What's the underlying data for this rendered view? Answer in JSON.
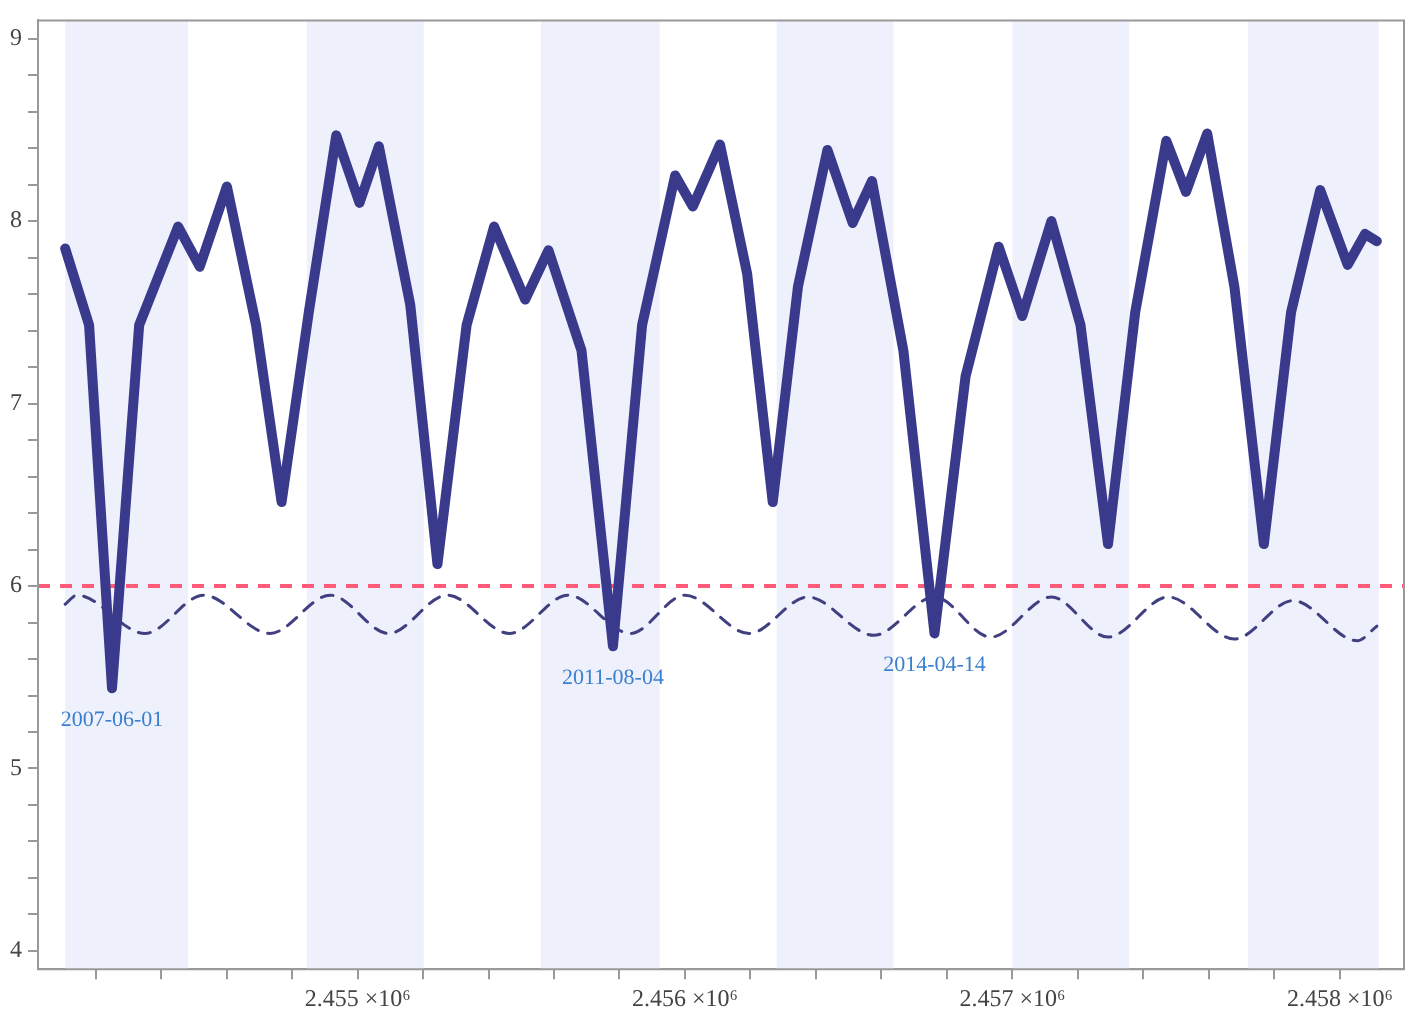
{
  "chart_data": {
    "type": "line",
    "xlim": [
      2454024,
      2458196
    ],
    "ylim": [
      3.9,
      9.1
    ],
    "xticks": [
      {
        "value": 2454200,
        "label": null
      },
      {
        "value": 2454400,
        "label": null
      },
      {
        "value": 2454600,
        "label": null
      },
      {
        "value": 2454800,
        "label": null
      },
      {
        "value": 2455000,
        "label": "2.455 ×10⁶"
      },
      {
        "value": 2455200,
        "label": null
      },
      {
        "value": 2455400,
        "label": null
      },
      {
        "value": 2455600,
        "label": null
      },
      {
        "value": 2455800,
        "label": null
      },
      {
        "value": 2456000,
        "label": "2.456 ×10⁶"
      },
      {
        "value": 2456200,
        "label": null
      },
      {
        "value": 2456400,
        "label": null
      },
      {
        "value": 2456600,
        "label": null
      },
      {
        "value": 2456800,
        "label": null
      },
      {
        "value": 2457000,
        "label": "2.457 ×10⁶"
      },
      {
        "value": 2457200,
        "label": null
      },
      {
        "value": 2457400,
        "label": null
      },
      {
        "value": 2457600,
        "label": null
      },
      {
        "value": 2457800,
        "label": null
      },
      {
        "value": 2458000,
        "label": "2.458 ×10⁶"
      }
    ],
    "yticks": [
      4,
      {
        "value": 4.2,
        "label": null
      },
      {
        "value": 4.4,
        "label": null
      },
      {
        "value": 4.6,
        "label": null
      },
      {
        "value": 4.8,
        "label": null
      },
      5,
      {
        "value": 5.2,
        "label": null
      },
      {
        "value": 5.4,
        "label": null
      },
      {
        "value": 5.6,
        "label": null
      },
      {
        "value": 5.8,
        "label": null
      },
      6,
      {
        "value": 6.2,
        "label": null
      },
      {
        "value": 6.4,
        "label": null
      },
      {
        "value": 6.6,
        "label": null
      },
      {
        "value": 6.8,
        "label": null
      },
      7,
      {
        "value": 7.2,
        "label": null
      },
      {
        "value": 7.4,
        "label": null
      },
      {
        "value": 7.6,
        "label": null
      },
      {
        "value": 7.8,
        "label": null
      },
      8,
      {
        "value": 8.2,
        "label": null
      },
      {
        "value": 8.4,
        "label": null
      },
      {
        "value": 8.6,
        "label": null
      },
      {
        "value": 8.8,
        "label": null
      },
      9
    ],
    "grid": false,
    "legend": false,
    "marker": "none",
    "series": [
      {
        "color": "#3a3a8c",
        "line_style": "solid",
        "x": [
          2454107,
          2454180,
          2454250,
          2454333,
          2454452,
          2454518,
          2454601,
          2454690,
          2454768,
          2454851,
          2454935,
          2455006,
          2455065,
          2455161,
          2455244,
          2455333,
          2455417,
          2455512,
          2455583,
          2455684,
          2455780,
          2455869,
          2455970,
          2456024,
          2456107,
          2456190,
          2456268,
          2456345,
          2456435,
          2456512,
          2456571,
          2456667,
          2456762,
          2456857,
          2456958,
          2457030,
          2457119,
          2457208,
          2457292,
          2457375,
          2457470,
          2457530,
          2457595,
          2457678,
          2457768,
          2457851,
          2457940,
          2458024,
          2458077,
          2458113
        ],
        "values": [
          7.85,
          7.43,
          5.44,
          7.43,
          7.97,
          7.75,
          8.19,
          7.43,
          6.46,
          7.5,
          8.47,
          8.1,
          8.41,
          7.54,
          6.12,
          7.43,
          7.97,
          7.57,
          7.84,
          7.29,
          5.67,
          7.43,
          8.25,
          8.08,
          8.42,
          7.71,
          6.46,
          7.64,
          8.39,
          7.99,
          8.22,
          7.29,
          5.74,
          7.15,
          7.86,
          7.48,
          8.0,
          7.43,
          6.23,
          7.5,
          8.44,
          8.16,
          8.48,
          7.64,
          6.23,
          7.5,
          8.17,
          7.76,
          7.93,
          7.89
        ]
      },
      {
        "color": "#404080",
        "line_style": "dashed",
        "x": [
          2454107,
          2454143,
          2454351,
          2454530,
          2454732,
          2454917,
          2455095,
          2455274,
          2455464,
          2455643,
          2455833,
          2456000,
          2456196,
          2456375,
          2456577,
          2456762,
          2456934,
          2457119,
          2457292,
          2457476,
          2457678,
          2457857,
          2458053,
          2458113
        ],
        "values": [
          5.9,
          5.95,
          5.74,
          5.95,
          5.74,
          5.95,
          5.74,
          5.95,
          5.74,
          5.95,
          5.74,
          5.95,
          5.74,
          5.94,
          5.73,
          5.94,
          5.72,
          5.94,
          5.72,
          5.94,
          5.71,
          5.92,
          5.7,
          5.78
        ]
      }
    ],
    "ref_lines": [
      {
        "axis": "y",
        "value": 6,
        "color": "#ff5a78",
        "line_style": "dashed"
      }
    ],
    "bands": [
      {
        "axis": "x",
        "from": 2454107,
        "to": 2454482,
        "color": "#eef0fc"
      },
      {
        "axis": "x",
        "from": 2454845,
        "to": 2455202,
        "color": "#eef0fc"
      },
      {
        "axis": "x",
        "from": 2455560,
        "to": 2455923,
        "color": "#eef0fc"
      },
      {
        "axis": "x",
        "from": 2456280,
        "to": 2456637,
        "color": "#eef0fc"
      },
      {
        "axis": "x",
        "from": 2457000,
        "to": 2457357,
        "color": "#eef0fc"
      },
      {
        "axis": "x",
        "from": 2457720,
        "to": 2458119,
        "color": "#eef0fc"
      }
    ],
    "annotations": [
      {
        "text": "2007-06-01",
        "x": 2454250,
        "y": 5.44
      },
      {
        "text": "2011-08-04",
        "x": 2455780,
        "y": 5.67
      },
      {
        "text": "2014-04-14",
        "x": 2456762,
        "y": 5.74
      }
    ]
  }
}
